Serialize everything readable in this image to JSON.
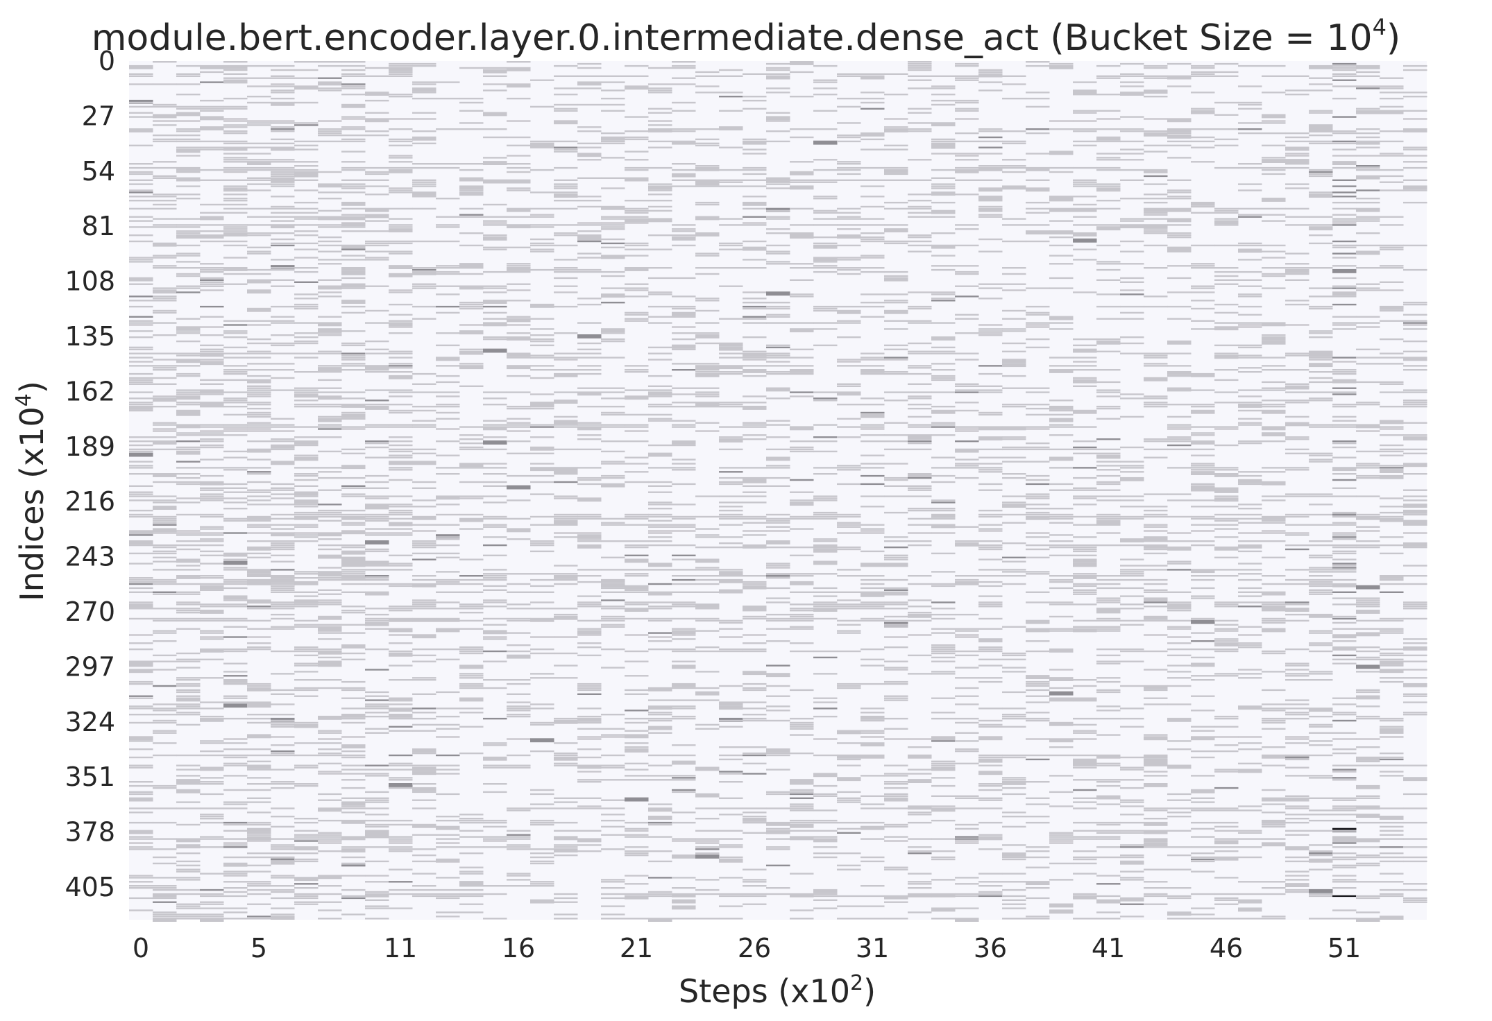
{
  "chart_data": {
    "type": "heatmap",
    "title_prefix": "module.bert.encoder.layer.0.intermediate.dense_act (Bucket Size = 10",
    "title_exponent": "4",
    "title_suffix": ")",
    "xlabel_prefix": "Steps (x10",
    "xlabel_exponent": "2",
    "xlabel_suffix": ")",
    "ylabel_prefix": "Indices (x10",
    "ylabel_exponent": "4",
    "ylabel_suffix": ")",
    "x_tick_labels": [
      "0",
      "5",
      "11",
      "16",
      "21",
      "26",
      "31",
      "36",
      "41",
      "46",
      "51"
    ],
    "x_tick_values": [
      0,
      5,
      11,
      16,
      21,
      26,
      31,
      36,
      41,
      46,
      51
    ],
    "y_tick_labels": [
      "0",
      "27",
      "54",
      "81",
      "108",
      "135",
      "162",
      "189",
      "216",
      "243",
      "270",
      "297",
      "324",
      "351",
      "378",
      "405"
    ],
    "y_tick_values": [
      0,
      27,
      54,
      81,
      108,
      135,
      162,
      189,
      216,
      243,
      270,
      297,
      324,
      351,
      378,
      405
    ],
    "x_range": [
      0,
      55
    ],
    "y_range": [
      0,
      421
    ],
    "grid": false,
    "colormap": {
      "background": "#f7f7fc",
      "low": "#c7c6cc",
      "mid": "#8f8e94",
      "high": "#1a1a1f"
    },
    "note": "Sparse heatmap of bucket activity: most cells are empty, with scattered light-grey horizontal dashes; column 51 shows the densest and darkest activity."
  }
}
